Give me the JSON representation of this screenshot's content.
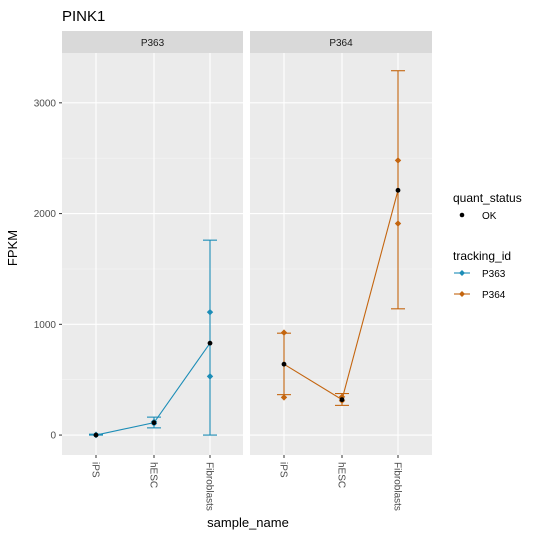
{
  "chart_data": {
    "type": "line",
    "title": "PINK1",
    "xlabel": "sample_name",
    "ylabel": "FPKM",
    "categories": [
      "iPS",
      "hESC",
      "Fibroblasts"
    ],
    "yticks": [
      0,
      1000,
      2000,
      3000
    ],
    "ylim": [
      -180,
      3450
    ],
    "grid": true,
    "facets": [
      {
        "label": "P363",
        "series": "P363",
        "values": [
          0,
          112,
          830
        ],
        "err_low": [
          0,
          65,
          0
        ],
        "err_high": [
          8,
          162,
          1760
        ],
        "replicates": [
          [
            0,
            3
          ],
          [
            105,
            120
          ],
          [
            530,
            1110
          ]
        ]
      },
      {
        "label": "P364",
        "series": "P364",
        "values": [
          640,
          320,
          2210
        ],
        "err_low": [
          365,
          268,
          1140
        ],
        "err_high": [
          920,
          375,
          3290
        ],
        "replicates": [
          [
            340,
            925
          ],
          [
            310,
            345
          ],
          [
            1910,
            2480
          ]
        ]
      }
    ],
    "legend": [
      {
        "title": "quant_status",
        "items": [
          {
            "label": "OK",
            "color": "#000000"
          }
        ]
      },
      {
        "title": "tracking_id",
        "items": [
          {
            "label": "P363",
            "color": "#1C8DB7"
          },
          {
            "label": "P364",
            "color": "#C4650F"
          }
        ]
      }
    ],
    "legend_position": "right",
    "colors": {
      "P363": "#1C8DB7",
      "P364": "#C4650F",
      "panel_bg": "#EBEBEB",
      "strip_bg": "#D9D9D9"
    }
  }
}
